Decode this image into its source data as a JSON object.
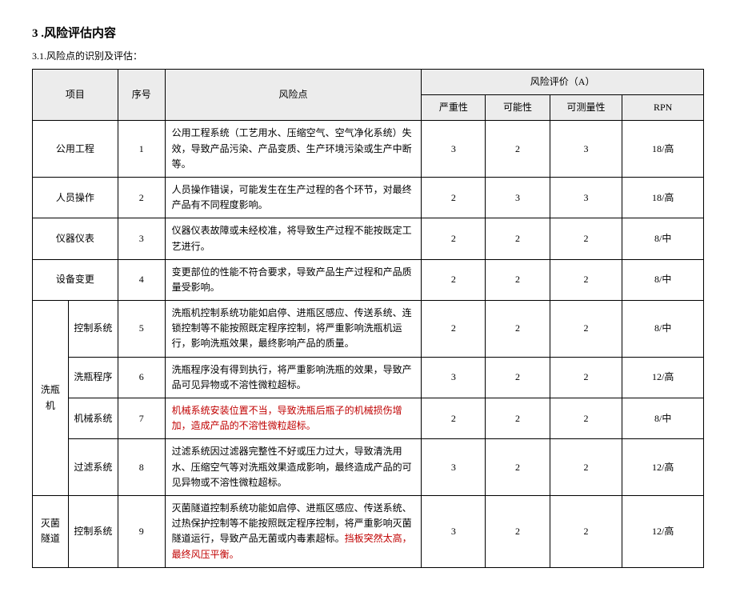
{
  "headings": {
    "h1": "3  .风险评估内容",
    "h2": "3.1.风险点的识别及评估："
  },
  "table": {
    "header": {
      "item": "项目",
      "seq": "序号",
      "risk": "风险点",
      "eval_group": "风险评价（A）",
      "sev": "严重性",
      "pos": "可能性",
      "mea": "可测量性",
      "rpn": "RPN"
    },
    "rows": [
      {
        "item_span": 2,
        "item": "公用工程",
        "seq": "1",
        "risk": "公用工程系统（工艺用水、压缩空气、空气净化系统）失效，导致产品污染、产品变质、生产环境污染或生产中断等。",
        "sev": "3",
        "pos": "2",
        "mea": "3",
        "rpn": "18/高"
      },
      {
        "item_span": 2,
        "item": "人员操作",
        "seq": "2",
        "risk": "人员操作错误，可能发生在生产过程的各个环节，对最终产品有不同程度影响。",
        "sev": "2",
        "pos": "3",
        "mea": "3",
        "rpn": "18/高"
      },
      {
        "item_span": 2,
        "item": "仪器仪表",
        "seq": "3",
        "risk": "仪器仪表故障或未经校准，将导致生产过程不能按既定工艺进行。",
        "sev": "2",
        "pos": "2",
        "mea": "2",
        "rpn": "8/中"
      },
      {
        "item_span": 2,
        "item": "设备变更",
        "seq": "4",
        "risk": "变更部位的性能不符合要求，导致产品生产过程和产品质量受影响。",
        "sev": "2",
        "pos": "2",
        "mea": "2",
        "rpn": "8/中"
      },
      {
        "group": "洗瓶机",
        "group_rows": 4,
        "sub": "控制系统",
        "seq": "5",
        "risk": "洗瓶机控制系统功能如启停、进瓶区感应、传送系统、连锁控制等不能按照既定程序控制，将严重影响洗瓶机运行，影响洗瓶效果，最终影响产品的质量。",
        "sev": "2",
        "pos": "2",
        "mea": "2",
        "rpn": "8/中"
      },
      {
        "sub": "洗瓶程序",
        "seq": "6",
        "risk": "洗瓶程序没有得到执行，将严重影响洗瓶的效果，导致产品可见异物或不溶性微粒超标。",
        "sev": "3",
        "pos": "2",
        "mea": "2",
        "rpn": "12/高"
      },
      {
        "sub": "机械系统",
        "seq": "7",
        "risk_red": "机械系统安装位置不当，导致洗瓶后瓶子的机械损伤增加，造成产品的不溶性微粒超标。",
        "sev": "2",
        "pos": "2",
        "mea": "2",
        "rpn": "8/中"
      },
      {
        "sub": "过滤系统",
        "seq": "8",
        "risk": "过滤系统因过滤器完整性不好或压力过大，导致清洗用水、压缩空气等对洗瓶效果造成影响，最终造成产品的可见异物或不溶性微粒超标。",
        "sev": "3",
        "pos": "2",
        "mea": "2",
        "rpn": "12/高"
      },
      {
        "group": "灭菌隧道",
        "group_rows": 1,
        "sub": "控制系统",
        "seq": "9",
        "risk": "灭菌隧道控制系统功能如启停、进瓶区感应、传送系统、过热保护控制等不能按照既定程序控制，将严重影响灭菌隧道运行，导致产品无菌或内毒素超标。",
        "risk_red_tail": "挡板突然太高，最终风压平衡。",
        "sev": "3",
        "pos": "2",
        "mea": "2",
        "rpn": "12/高"
      }
    ]
  }
}
